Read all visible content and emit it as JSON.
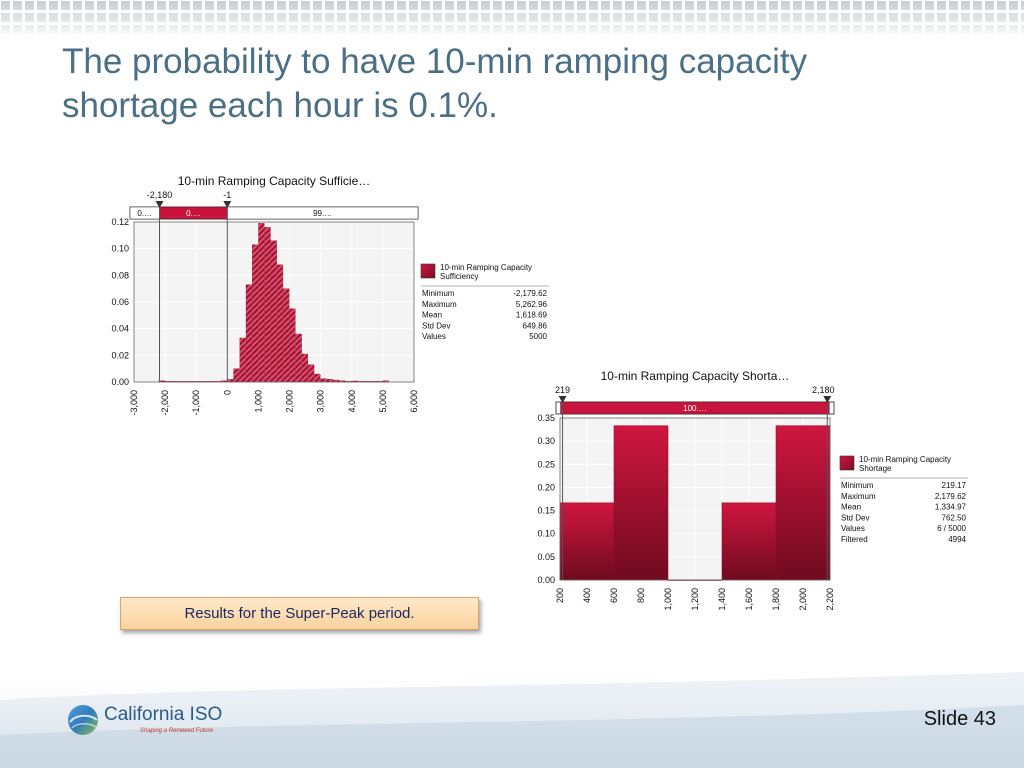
{
  "slide": {
    "title_line1": "The probability to have 10-min ramping capacity",
    "title_line2": "shortage each hour is 0.1%.",
    "caption": "Results for the Super-Peak period.",
    "slide_number": "Slide 43"
  },
  "logo": {
    "name": "California ISO",
    "tagline": "Shaping a Renewed Future"
  },
  "colors": {
    "title": "#4a6f86",
    "bar_red": "#c8143c",
    "bar_dark": "#7a0d24"
  },
  "chart_data": [
    {
      "type": "bar",
      "title": "10-min Ramping Capacity Sufficie…",
      "marker_labels": [
        "-2,180",
        "-1"
      ],
      "range_bar_labels": [
        "0.…",
        "0.…",
        "99.…"
      ],
      "xlim": [
        -3000,
        6000
      ],
      "ylim": [
        0,
        0.12
      ],
      "x_ticks": [
        "-3,000",
        "-2,000",
        "-1,000",
        "0",
        "1,000",
        "2,000",
        "3,000",
        "4,000",
        "5,000",
        "6,000"
      ],
      "y_ticks": [
        "0.12",
        "0.10",
        "0.08",
        "0.06",
        "0.04",
        "0.02",
        "0.00"
      ],
      "bin_width": 200,
      "bins": [
        {
          "x": -2200,
          "value": 0.001
        },
        {
          "x": -2000,
          "value": 0.0005
        },
        {
          "x": -1800,
          "value": 0.0005
        },
        {
          "x": -1600,
          "value": 0.0005
        },
        {
          "x": -1400,
          "value": 0.0005
        },
        {
          "x": -1200,
          "value": 0.0005
        },
        {
          "x": -1000,
          "value": 0.0005
        },
        {
          "x": -800,
          "value": 0.0005
        },
        {
          "x": -600,
          "value": 0.0005
        },
        {
          "x": -400,
          "value": 0.0005
        },
        {
          "x": -200,
          "value": 0.001
        },
        {
          "x": 0,
          "value": 0.002
        },
        {
          "x": 200,
          "value": 0.01
        },
        {
          "x": 400,
          "value": 0.033
        },
        {
          "x": 600,
          "value": 0.073
        },
        {
          "x": 800,
          "value": 0.103
        },
        {
          "x": 1000,
          "value": 0.119
        },
        {
          "x": 1200,
          "value": 0.116
        },
        {
          "x": 1400,
          "value": 0.106
        },
        {
          "x": 1600,
          "value": 0.088
        },
        {
          "x": 1800,
          "value": 0.07
        },
        {
          "x": 2000,
          "value": 0.055
        },
        {
          "x": 2200,
          "value": 0.036
        },
        {
          "x": 2400,
          "value": 0.021
        },
        {
          "x": 2600,
          "value": 0.013
        },
        {
          "x": 2800,
          "value": 0.006
        },
        {
          "x": 3000,
          "value": 0.0025
        },
        {
          "x": 3200,
          "value": 0.002
        },
        {
          "x": 3400,
          "value": 0.0015
        },
        {
          "x": 3600,
          "value": 0.001
        },
        {
          "x": 3800,
          "value": 0.0005
        },
        {
          "x": 4000,
          "value": 0.0008
        },
        {
          "x": 4200,
          "value": 0.0005
        },
        {
          "x": 4400,
          "value": 0.0005
        },
        {
          "x": 4600,
          "value": 0.0005
        },
        {
          "x": 4800,
          "value": 0.0005
        },
        {
          "x": 5000,
          "value": 0.001
        }
      ],
      "markers": [
        -2180,
        -1
      ],
      "stats": {
        "legend_label": "10-min Ramping Capacity Sufficiency",
        "rows": [
          {
            "label": "Minimum",
            "value": "-2,179.62"
          },
          {
            "label": "Maximum",
            "value": "5,262.96"
          },
          {
            "label": "Mean",
            "value": "1,618.69"
          },
          {
            "label": "Std Dev",
            "value": "649.86"
          },
          {
            "label": "Values",
            "value": "5000"
          }
        ]
      }
    },
    {
      "type": "bar",
      "title": "10-min Ramping Capacity Shorta…",
      "marker_labels": [
        "219",
        "2,180"
      ],
      "range_bar_labels": [
        "100.…"
      ],
      "xlim": [
        200,
        2200
      ],
      "ylim": [
        0,
        0.35
      ],
      "x_ticks": [
        "200",
        "400",
        "600",
        "800",
        "1,000",
        "1,200",
        "1,400",
        "1,600",
        "1,800",
        "2,000",
        "2,200"
      ],
      "y_ticks": [
        "0.35",
        "0.30",
        "0.25",
        "0.20",
        "0.15",
        "0.10",
        "0.05",
        "0.00"
      ],
      "bins": [
        {
          "x0": 200,
          "x1": 600,
          "value": 0.1667
        },
        {
          "x0": 600,
          "x1": 1000,
          "value": 0.3333
        },
        {
          "x0": 1000,
          "x1": 1400,
          "value": 0.0
        },
        {
          "x0": 1400,
          "x1": 1800,
          "value": 0.1667
        },
        {
          "x0": 1800,
          "x1": 2200,
          "value": 0.3333
        }
      ],
      "markers": [
        219,
        2180
      ],
      "stats": {
        "legend_label": "10-min Ramping Capacity Shortage",
        "rows": [
          {
            "label": "Minimum",
            "value": "219.17"
          },
          {
            "label": "Maximum",
            "value": "2,179.62"
          },
          {
            "label": "Mean",
            "value": "1,334.97"
          },
          {
            "label": "Std Dev",
            "value": "762.50"
          },
          {
            "label": "Values",
            "value": "6 / 5000"
          },
          {
            "label": "Filtered",
            "value": "4994"
          }
        ]
      }
    }
  ]
}
